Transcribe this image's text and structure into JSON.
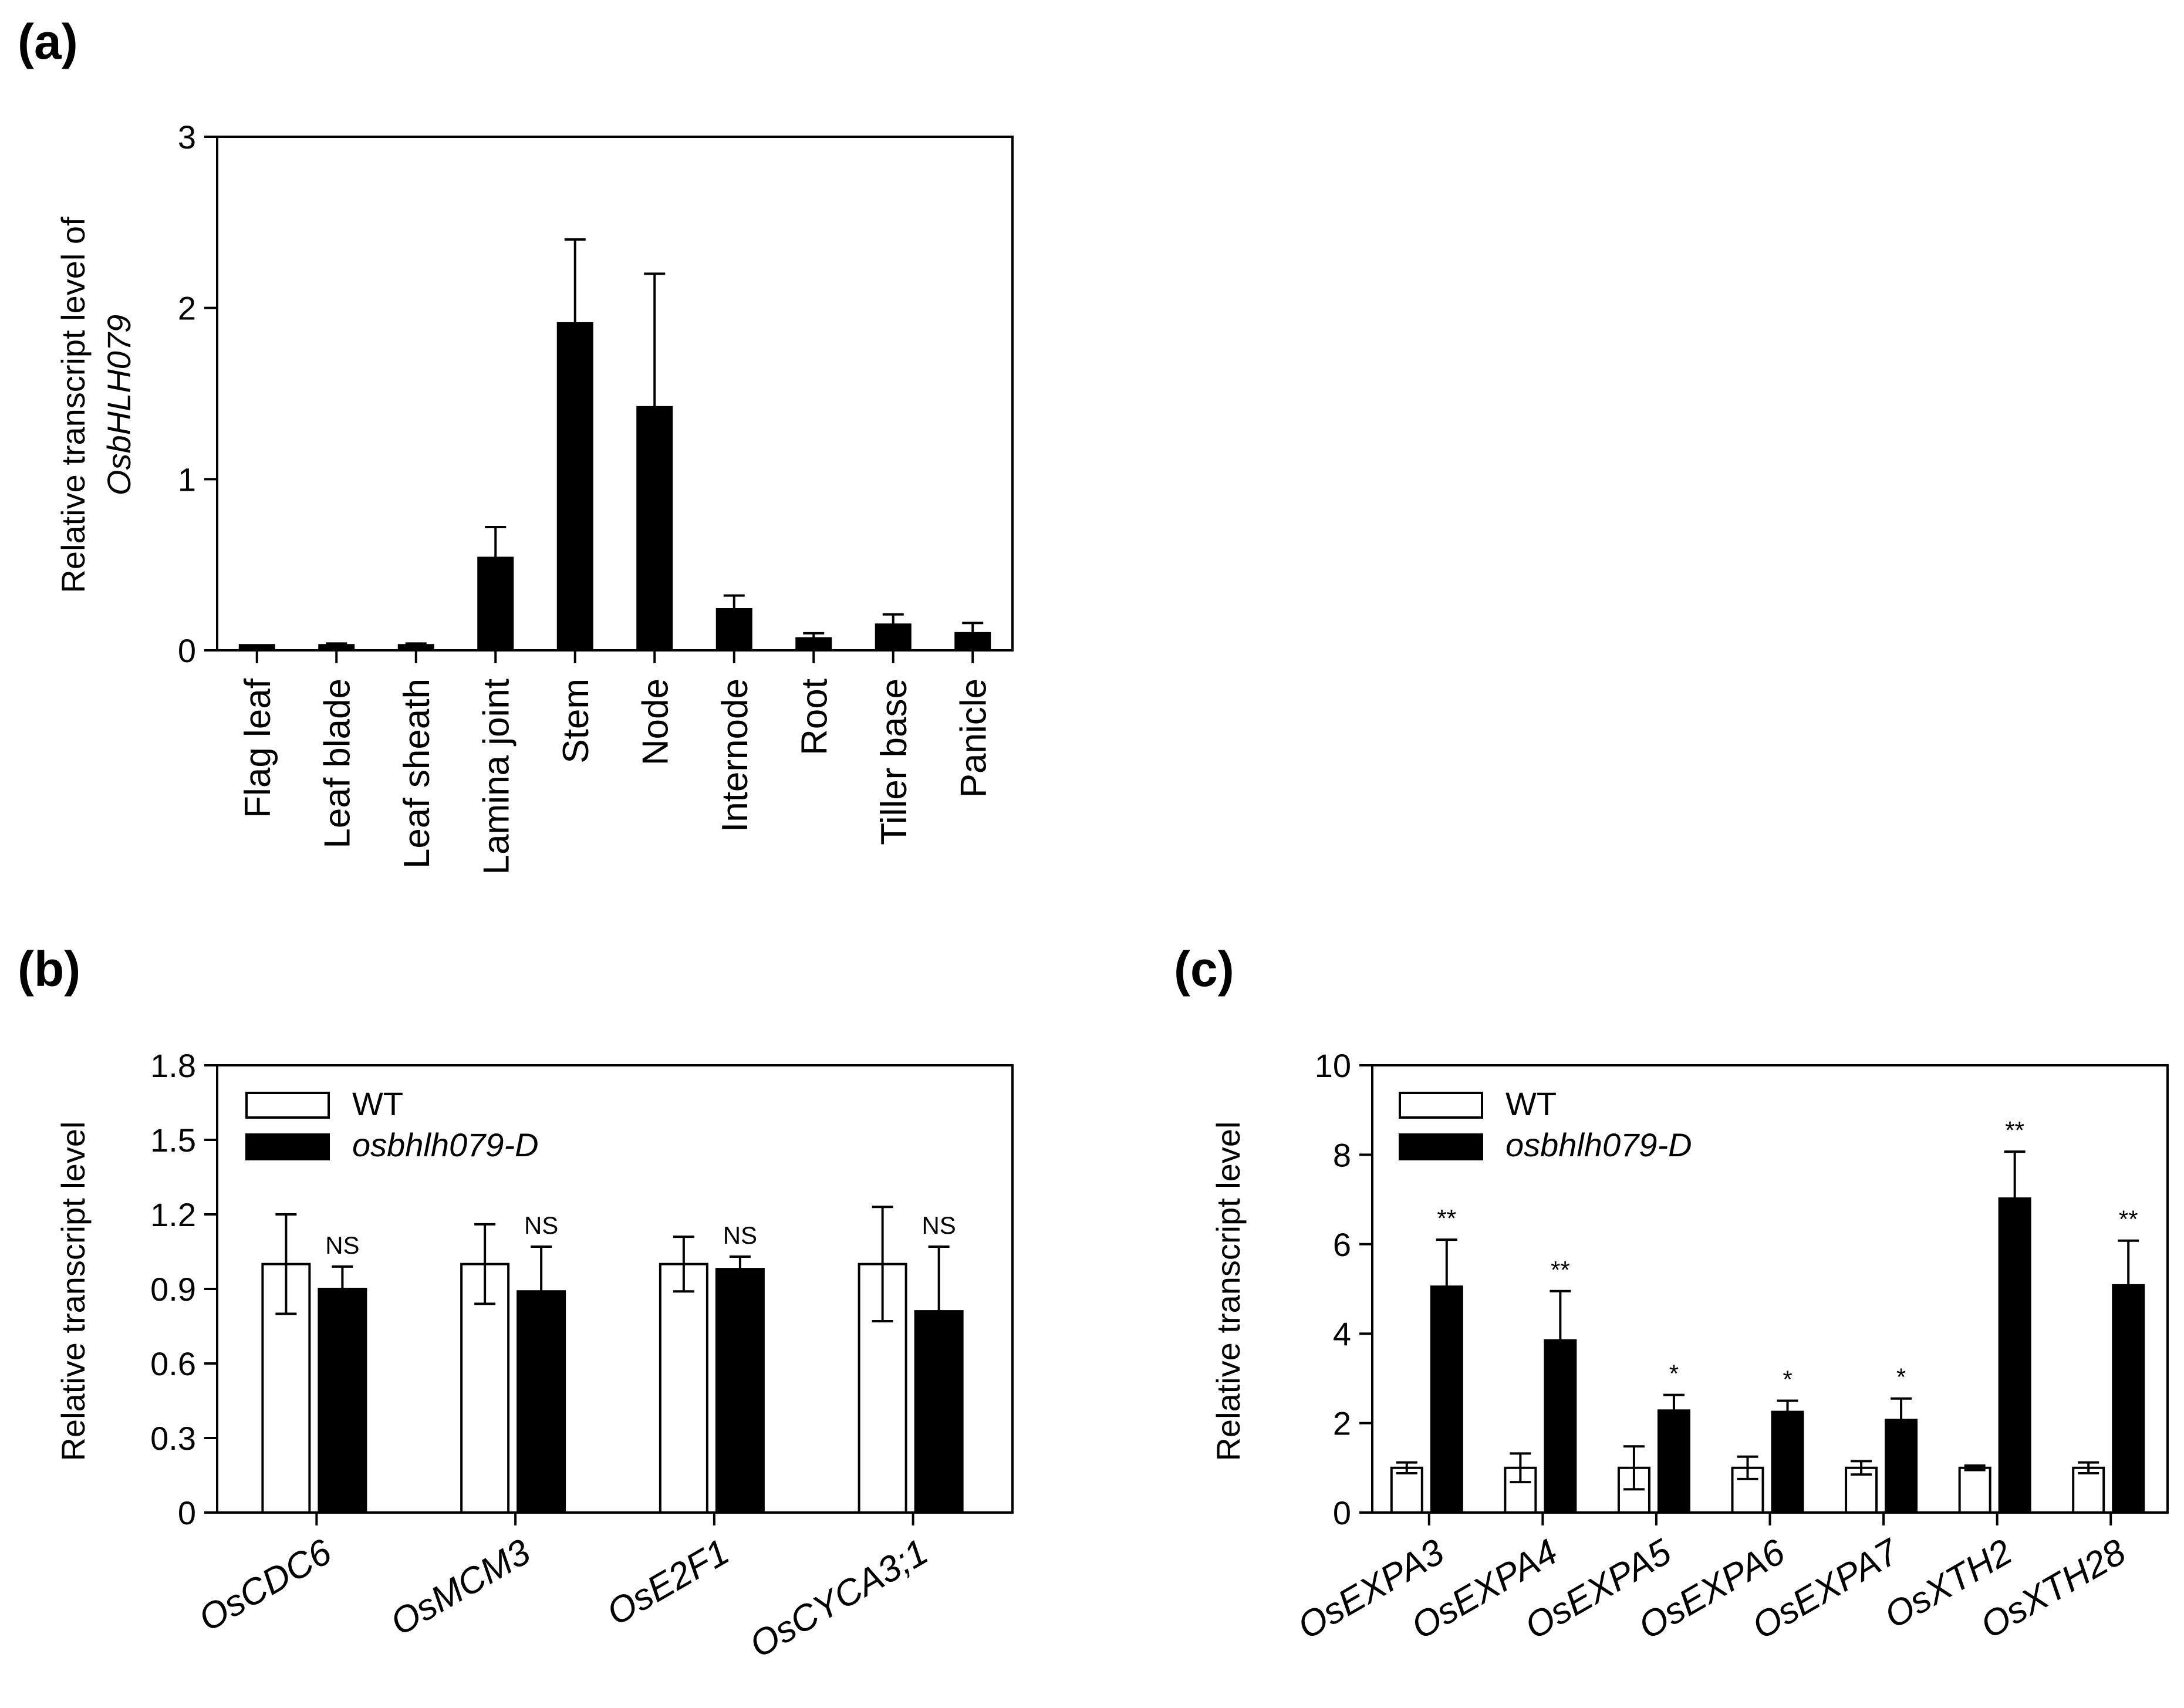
{
  "chart_data": [
    {
      "type": "bar",
      "panel_label": "(a)",
      "ylabel_line1": "Relative transcript level of",
      "ylabel_line2": "OsbHLH079",
      "xlabel": "",
      "ylim": [
        0,
        3
      ],
      "yticks": [
        "0",
        "1",
        "2",
        "3"
      ],
      "categories": [
        "Flag leaf",
        "Leaf blade",
        "Leaf sheath",
        "Lamina joint",
        "Stem",
        "Node",
        "Internode",
        "Root",
        "Tiller base",
        "Panicle"
      ],
      "values": [
        0.03,
        0.03,
        0.03,
        0.54,
        1.91,
        1.42,
        0.24,
        0.07,
        0.15,
        0.1
      ],
      "errors": [
        0.0,
        0.01,
        0.01,
        0.18,
        0.49,
        0.78,
        0.08,
        0.03,
        0.06,
        0.06
      ]
    },
    {
      "type": "bar",
      "panel_label": "(b)",
      "ylabel": "Relative transcript level",
      "ylim": [
        0,
        1.8
      ],
      "yticks": [
        "0",
        "0.3",
        "0.6",
        "0.9",
        "1.2",
        "1.5",
        "1.8"
      ],
      "categories": [
        "OsCDC6",
        "OsMCM3",
        "OsE2F1",
        "OsCYCA3;1"
      ],
      "legend": [
        "WT",
        "osbhlh079-D"
      ],
      "series": [
        {
          "name": "WT",
          "values": [
            1.0,
            1.0,
            1.0,
            1.0
          ],
          "errors": [
            0.2,
            0.16,
            0.11,
            0.23
          ],
          "color": "#ffffff"
        },
        {
          "name": "osbhlh079-D",
          "values": [
            0.9,
            0.89,
            0.98,
            0.81
          ],
          "errors": [
            0.09,
            0.18,
            0.05,
            0.26
          ],
          "color": "#000000"
        }
      ],
      "annotations": [
        "NS",
        "NS",
        "NS",
        "NS"
      ]
    },
    {
      "type": "bar",
      "panel_label": "(c)",
      "ylabel": "Relative transcript level",
      "ylim": [
        0,
        10
      ],
      "yticks": [
        "0",
        "2",
        "4",
        "6",
        "8",
        "10"
      ],
      "categories": [
        "OsEXPA3",
        "OsEXPA4",
        "OsEXPA5",
        "OsEXPA6",
        "OsEXPA7",
        "OsXTH2",
        "OsXTH28"
      ],
      "legend": [
        "WT",
        "osbhlh079-D"
      ],
      "series": [
        {
          "name": "WT",
          "values": [
            1.0,
            1.0,
            1.0,
            1.0,
            1.0,
            1.0,
            1.0
          ],
          "errors": [
            0.12,
            0.32,
            0.48,
            0.25,
            0.15,
            0.05,
            0.12
          ],
          "color": "#ffffff"
        },
        {
          "name": "osbhlh079-D",
          "values": [
            5.05,
            3.85,
            2.28,
            2.25,
            2.07,
            7.02,
            5.08
          ],
          "errors": [
            1.05,
            1.1,
            0.35,
            0.25,
            0.48,
            1.05,
            1.0
          ],
          "color": "#000000"
        }
      ],
      "annotations": [
        "**",
        "**",
        "*",
        "*",
        "*",
        "**",
        "**"
      ]
    }
  ]
}
